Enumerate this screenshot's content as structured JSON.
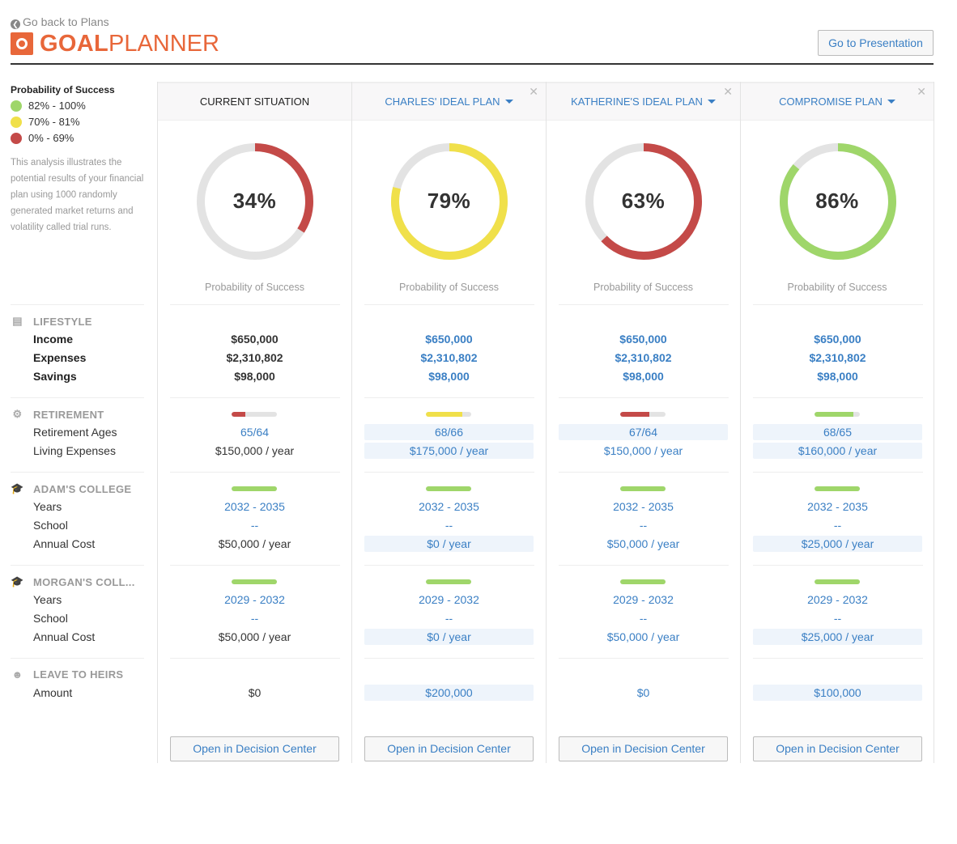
{
  "header": {
    "back_label": "Go back to Plans",
    "logo_bold": "GOAL",
    "logo_normal": "PLANNER",
    "presentation_button": "Go to Presentation"
  },
  "legend": {
    "title": "Probability of Success",
    "items": [
      {
        "label": "82% - 100%",
        "color": "#9fd66a"
      },
      {
        "label": "70% - 81%",
        "color": "#f0e04a"
      },
      {
        "label": "0% - 69%",
        "color": "#c44a48"
      }
    ],
    "description": "This analysis illustrates the potential results of your financial plan using 1000 randomly generated market returns and volatility called trial runs."
  },
  "sections": {
    "lifestyle": {
      "title": "LIFESTYLE",
      "icon": "money-icon",
      "labels": [
        "Income",
        "Expenses",
        "Savings"
      ]
    },
    "retirement": {
      "title": "RETIREMENT",
      "icon": "gear-icon",
      "labels": [
        "Retirement Ages",
        "Living Expenses"
      ]
    },
    "adam": {
      "title": "ADAM'S COLLEGE",
      "icon": "graduation-cap-icon",
      "labels": [
        "Years",
        "School",
        "Annual Cost"
      ]
    },
    "morgan": {
      "title": "MORGAN'S COLL...",
      "icon": "graduation-cap-icon",
      "labels": [
        "Years",
        "School",
        "Annual Cost"
      ]
    },
    "heirs": {
      "title": "LEAVE TO HEIRS",
      "icon": "users-icon",
      "labels": [
        "Amount"
      ]
    }
  },
  "probability_label": "Probability of Success",
  "open_button": "Open in Decision Center",
  "colors": {
    "green": "#9fd66a",
    "yellow": "#f0e04a",
    "red": "#c44a48",
    "track": "#e3e3e3",
    "blue": "#3a7fc4"
  },
  "plans": [
    {
      "name": "CURRENT SITUATION",
      "current": true,
      "probability": 34,
      "pct_label": "34%",
      "color": "red",
      "income": "$650,000",
      "expenses": "$2,310,802",
      "savings": "$98,000",
      "ret_fill": 30,
      "ret_color": "red",
      "ret_ages": "65/64",
      "ret_exp": "$150,000 / year",
      "ret_hl": [
        false,
        false
      ],
      "adam_years": "2032 - 2035",
      "adam_school": "--",
      "adam_cost": "$50,000 / year",
      "adam_hl": false,
      "morgan_years": "2029 - 2032",
      "morgan_school": "--",
      "morgan_cost": "$50,000 / year",
      "morgan_hl": false,
      "heirs": "$0",
      "heirs_hl": false,
      "heirs_blue": false
    },
    {
      "name": "CHARLES' IDEAL PLAN",
      "current": false,
      "probability": 79,
      "pct_label": "79%",
      "color": "yellow",
      "income": "$650,000",
      "expenses": "$2,310,802",
      "savings": "$98,000",
      "ret_fill": 80,
      "ret_color": "yellow",
      "ret_ages": "68/66",
      "ret_exp": "$175,000 / year",
      "ret_hl": [
        true,
        true
      ],
      "adam_years": "2032 - 2035",
      "adam_school": "--",
      "adam_cost": "$0 / year",
      "adam_hl": true,
      "morgan_years": "2029 - 2032",
      "morgan_school": "--",
      "morgan_cost": "$0 / year",
      "morgan_hl": true,
      "heirs": "$200,000",
      "heirs_hl": true,
      "heirs_blue": true
    },
    {
      "name": "KATHERINE'S IDEAL PLAN",
      "current": false,
      "probability": 63,
      "pct_label": "63%",
      "color": "red",
      "income": "$650,000",
      "expenses": "$2,310,802",
      "savings": "$98,000",
      "ret_fill": 64,
      "ret_color": "red",
      "ret_ages": "67/64",
      "ret_exp": "$150,000 / year",
      "ret_hl": [
        true,
        false
      ],
      "adam_years": "2032 - 2035",
      "adam_school": "--",
      "adam_cost": "$50,000 / year",
      "adam_hl": false,
      "morgan_years": "2029 - 2032",
      "morgan_school": "--",
      "morgan_cost": "$50,000 / year",
      "morgan_hl": false,
      "heirs": "$0",
      "heirs_hl": false,
      "heirs_blue": true
    },
    {
      "name": "COMPROMISE PLAN",
      "current": false,
      "probability": 86,
      "pct_label": "86%",
      "color": "green",
      "income": "$650,000",
      "expenses": "$2,310,802",
      "savings": "$98,000",
      "ret_fill": 86,
      "ret_color": "green",
      "ret_ages": "68/65",
      "ret_exp": "$160,000 / year",
      "ret_hl": [
        true,
        true
      ],
      "adam_years": "2032 - 2035",
      "adam_school": "--",
      "adam_cost": "$25,000 / year",
      "adam_hl": true,
      "morgan_years": "2029 - 2032",
      "morgan_school": "--",
      "morgan_cost": "$25,000 / year",
      "morgan_hl": true,
      "heirs": "$100,000",
      "heirs_hl": true,
      "heirs_blue": true
    }
  ]
}
